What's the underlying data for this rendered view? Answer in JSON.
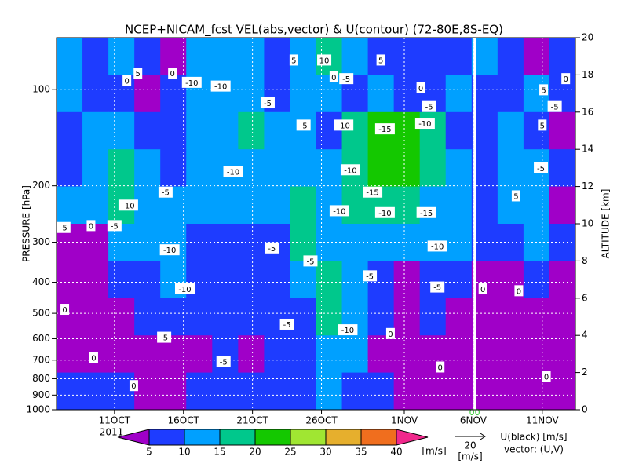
{
  "chart_data": {
    "type": "heatmap",
    "title": "NCEP+NICAM_fcst VEL(abs,vector) & U(contour)   (72-80E,8S-EQ)",
    "ylabel": "PRESSURE [hPa]",
    "y2label": "ALTITUDE [km]",
    "year_label": "2011",
    "xlim": [
      6.8,
      44.4
    ],
    "xticks": [
      {
        "value": 11,
        "label": "11OCT"
      },
      {
        "value": 16,
        "label": "16OCT"
      },
      {
        "value": 21,
        "label": "21OCT"
      },
      {
        "value": 26,
        "label": "26OCT"
      },
      {
        "value": 32,
        "label": "1NOV"
      },
      {
        "value": 37,
        "label": "6NOV"
      },
      {
        "value": 42,
        "label": "11NOV"
      }
    ],
    "ylim": [
      1000,
      69
    ],
    "log_y": true,
    "yticks": [
      100,
      200,
      300,
      400,
      500,
      600,
      700,
      800,
      900,
      1000
    ],
    "y2lim": [
      0,
      20
    ],
    "y2ticks": [
      0,
      2,
      4,
      6,
      8,
      10,
      12,
      14,
      16,
      18,
      20
    ],
    "grid": true,
    "forecast_start": 37.1,
    "forecast_label": "00",
    "row_bounds_km": [
      20,
      18,
      16,
      14,
      12,
      10,
      8,
      6,
      4,
      2,
      0
    ],
    "field": [
      [
        12,
        8,
        12,
        8,
        3,
        12,
        10,
        12,
        8,
        12,
        18,
        12,
        8,
        7,
        7,
        8,
        12,
        8,
        3,
        8
      ],
      [
        12,
        8,
        8,
        3,
        8,
        12,
        10,
        12,
        8,
        12,
        12,
        8,
        12,
        8,
        8,
        12,
        8,
        8,
        12,
        8
      ],
      [
        8,
        12,
        12,
        8,
        8,
        12,
        12,
        18,
        12,
        12,
        8,
        17,
        22,
        24,
        18,
        8,
        8,
        12,
        8,
        3
      ],
      [
        8,
        12,
        17,
        12,
        8,
        12,
        12,
        12,
        12,
        12,
        12,
        17,
        22,
        22,
        18,
        12,
        8,
        12,
        12,
        8
      ],
      [
        12,
        12,
        17,
        12,
        12,
        12,
        12,
        12,
        12,
        17,
        12,
        17,
        17,
        17,
        12,
        12,
        8,
        12,
        12,
        3
      ],
      [
        3,
        3,
        12,
        12,
        12,
        8,
        8,
        8,
        8,
        17,
        12,
        12,
        12,
        12,
        12,
        12,
        8,
        8,
        12,
        8
      ],
      [
        3,
        3,
        8,
        8,
        12,
        8,
        8,
        8,
        8,
        12,
        17,
        12,
        8,
        3,
        8,
        8,
        3,
        3,
        8,
        3
      ],
      [
        3,
        3,
        3,
        8,
        8,
        8,
        8,
        8,
        8,
        8,
        17,
        12,
        8,
        3,
        8,
        3,
        3,
        3,
        3,
        3
      ],
      [
        3,
        3,
        3,
        3,
        3,
        3,
        8,
        3,
        8,
        8,
        12,
        12,
        3,
        3,
        3,
        3,
        3,
        3,
        3,
        3
      ],
      [
        8,
        8,
        8,
        3,
        3,
        8,
        8,
        8,
        8,
        8,
        12,
        8,
        8,
        3,
        3,
        3,
        3,
        3,
        3,
        3
      ]
    ],
    "levels": [
      5,
      10,
      15,
      20,
      25,
      30,
      35,
      40
    ],
    "colors": [
      "#a000c8",
      "#1e3cff",
      "#00a0ff",
      "#00c88c",
      "#14c800",
      "#a0e632",
      "#e6af2d",
      "#f06e1e",
      "#f0288c"
    ],
    "unit_label": "[m/s]",
    "vector_ref": {
      "value": 20,
      "unit": "[m/s]"
    },
    "contour_legend": "U(black) [m/s]",
    "vector_legend": "vector: (U,V)",
    "contour_labels": [
      {
        "value": 5,
        "x": 12.7,
        "alt": 18.1
      },
      {
        "value": 0,
        "x": 11.9,
        "alt": 17.7
      },
      {
        "value": 0,
        "x": 15.2,
        "alt": 18.1
      },
      {
        "value": -10,
        "x": 16.6,
        "alt": 17.6
      },
      {
        "value": -10,
        "x": 18.7,
        "alt": 17.4
      },
      {
        "value": 5,
        "x": 24.0,
        "alt": 18.8
      },
      {
        "value": 10,
        "x": 26.2,
        "alt": 18.8
      },
      {
        "value": 5,
        "x": 30.3,
        "alt": 18.8
      },
      {
        "value": 0,
        "x": 26.9,
        "alt": 17.9
      },
      {
        "value": -5,
        "x": 27.8,
        "alt": 17.8
      },
      {
        "value": 0,
        "x": 33.2,
        "alt": 17.3
      },
      {
        "value": -5,
        "x": 22.1,
        "alt": 16.5
      },
      {
        "value": -5,
        "x": 33.8,
        "alt": 16.3
      },
      {
        "value": -5,
        "x": 24.7,
        "alt": 15.3
      },
      {
        "value": -10,
        "x": 27.6,
        "alt": 15.3
      },
      {
        "value": -15,
        "x": 30.6,
        "alt": 15.1
      },
      {
        "value": -10,
        "x": 33.5,
        "alt": 15.4
      },
      {
        "value": -10,
        "x": 28.1,
        "alt": 12.9
      },
      {
        "value": -10,
        "x": 19.6,
        "alt": 12.8
      },
      {
        "value": -5,
        "x": 14.7,
        "alt": 11.7
      },
      {
        "value": -15,
        "x": 29.7,
        "alt": 11.7
      },
      {
        "value": -10,
        "x": 12.0,
        "alt": 11.0
      },
      {
        "value": -10,
        "x": 27.3,
        "alt": 10.7
      },
      {
        "value": -10,
        "x": 30.6,
        "alt": 10.6
      },
      {
        "value": -15,
        "x": 33.6,
        "alt": 10.6
      },
      {
        "value": -5,
        "x": 7.3,
        "alt": 9.8
      },
      {
        "value": 0,
        "x": 9.3,
        "alt": 9.9
      },
      {
        "value": -5,
        "x": 11.0,
        "alt": 9.9
      },
      {
        "value": -10,
        "x": 15.0,
        "alt": 8.6
      },
      {
        "value": -5,
        "x": 22.4,
        "alt": 8.7
      },
      {
        "value": -10,
        "x": 34.4,
        "alt": 8.8
      },
      {
        "value": -5,
        "x": 25.2,
        "alt": 8.0
      },
      {
        "value": -5,
        "x": 29.5,
        "alt": 7.2
      },
      {
        "value": -10,
        "x": 16.1,
        "alt": 6.5
      },
      {
        "value": -5,
        "x": 34.4,
        "alt": 6.6
      },
      {
        "value": 0,
        "x": 37.7,
        "alt": 6.5
      },
      {
        "value": 0,
        "x": 40.3,
        "alt": 6.4
      },
      {
        "value": 0,
        "x": 7.4,
        "alt": 5.4
      },
      {
        "value": -5,
        "x": 23.5,
        "alt": 4.6
      },
      {
        "value": -10,
        "x": 27.9,
        "alt": 4.3
      },
      {
        "value": 0,
        "x": 31.0,
        "alt": 4.1
      },
      {
        "value": -5,
        "x": 14.6,
        "alt": 3.9
      },
      {
        "value": -5,
        "x": 18.9,
        "alt": 2.6
      },
      {
        "value": 0,
        "x": 9.5,
        "alt": 2.8
      },
      {
        "value": 0,
        "x": 34.6,
        "alt": 2.3
      },
      {
        "value": 0,
        "x": 12.4,
        "alt": 1.3
      },
      {
        "value": 0,
        "x": 42.3,
        "alt": 1.8
      },
      {
        "value": 5,
        "x": 40.1,
        "alt": 11.5
      },
      {
        "value": -5,
        "x": 41.9,
        "alt": 13.0
      },
      {
        "value": 5,
        "x": 42.1,
        "alt": 17.2
      },
      {
        "value": -5,
        "x": 42.9,
        "alt": 16.3
      },
      {
        "value": 5,
        "x": 42.0,
        "alt": 15.3
      },
      {
        "value": 0,
        "x": 43.7,
        "alt": 17.8
      }
    ]
  }
}
